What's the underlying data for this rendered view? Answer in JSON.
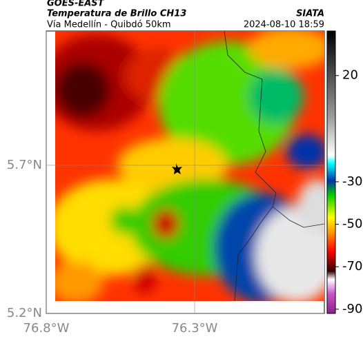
{
  "header": {
    "source": "GOES-EAST",
    "title": "Temperatura de Brillo CH13",
    "subtitle": "Vía Medellín - Quibdó 50km",
    "brand": "SIATA",
    "timestamp": "2024-08-10 18:59"
  },
  "map": {
    "latlim": [
      5.2,
      6.153
    ],
    "lonlim": [
      -76.8,
      -75.863
    ],
    "latticks": [
      {
        "value": 5.7,
        "label": "5.7°N"
      },
      {
        "value": 5.2,
        "label": "5.2°N"
      }
    ],
    "lonticks": [
      {
        "value": -76.8,
        "label": "76.8°W"
      },
      {
        "value": -76.3,
        "label": "76.3°W"
      }
    ]
  },
  "colorbar": {
    "range": [
      -92,
      41
    ],
    "ticks": [
      20,
      -30,
      -50,
      -70,
      -90
    ]
  }
}
